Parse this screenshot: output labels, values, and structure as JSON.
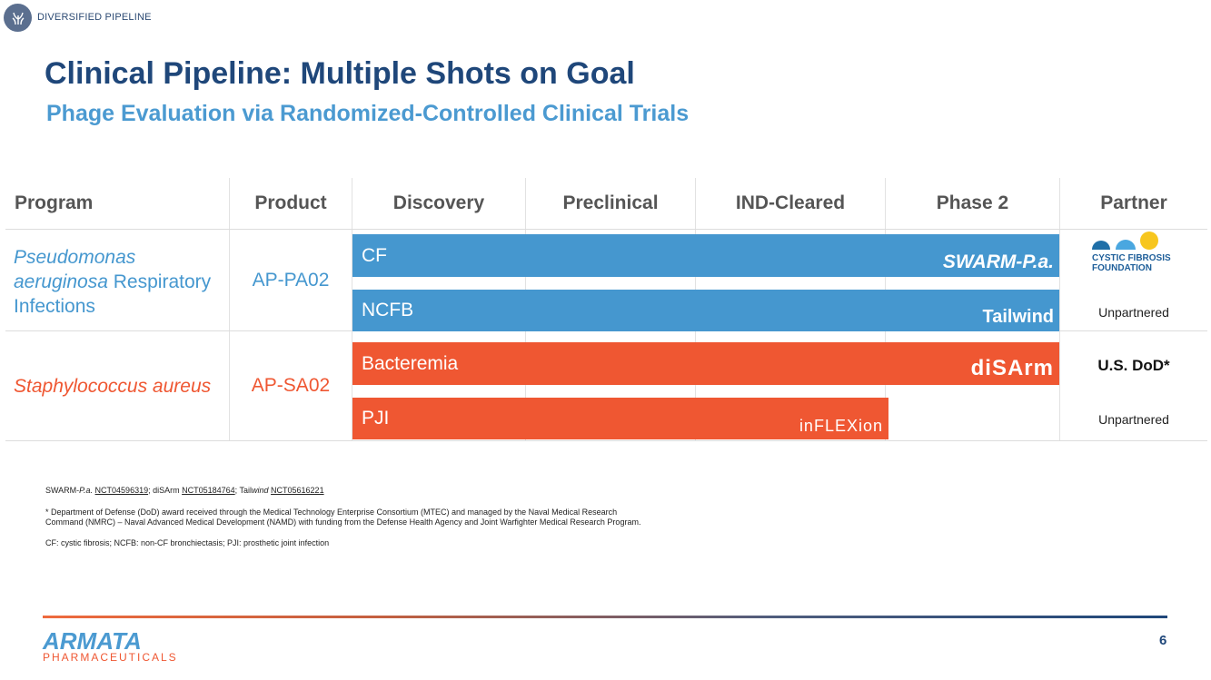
{
  "section_tag": {
    "label": "DIVERSIFIED PIPELINE",
    "icon": "plant-icon"
  },
  "title": "Clinical Pipeline: Multiple Shots on Goal",
  "subtitle": "Phage Evaluation via Randomized-Controlled Clinical Trials",
  "table": {
    "headers": [
      "Program",
      "Product",
      "Discovery",
      "Preclinical",
      "IND-Cleared",
      "Phase 2",
      "Partner"
    ],
    "rows": [
      {
        "program_italic": "Pseudomonas aeruginosa",
        "program_line1": "Pseudomonas",
        "program_line2_italic": "aeruginosa",
        "program_line2_rest": " Respiratory",
        "program_line3": "Infections",
        "program_color": "#4597cf",
        "product": "AP-PA02",
        "indications": [
          {
            "label": "CF",
            "trial_logo": "SWARM-P.a.",
            "stage": "Phase 2",
            "partner": "CYSTIC FIBROSIS FOUNDATION",
            "partner_lines": [
              "CYSTIC FIBROSIS",
              "FOUNDATION"
            ]
          },
          {
            "label": "NCFB",
            "trial_logo": "Tailwind",
            "stage": "Phase 2",
            "partner": "Unpartnered"
          }
        ]
      },
      {
        "program": "Staphylococcus aureus",
        "program_color": "#ef5732",
        "product": "AP-SA02",
        "indications": [
          {
            "label": "Bacteremia",
            "trial_logo": "diSArm",
            "stage": "Phase 2",
            "partner": "U.S. DoD*"
          },
          {
            "label": "PJI",
            "trial_logo": "inFLEXion",
            "stage": "Phase 2",
            "partner": "Unpartnered"
          }
        ]
      }
    ],
    "colors": {
      "blue": "#4597cf",
      "orange": "#ef5732"
    }
  },
  "footnotes": {
    "trials_a": "SWARM-",
    "trials_a_italic": "P.a.",
    "trials_nct1": "NCT04596319",
    "trials_b": "; diSArm ",
    "trials_nct2": "NCT05184764",
    "trials_c": "; Tail",
    "trials_c_italic": "wind",
    "trials_nct3": "NCT05616221",
    "dod_line1": "* Department of Defense (DoD) award received through the Medical Technology Enterprise Consortium (MTEC) and managed by the Naval Medical Research",
    "dod_line2": "Command (NMRC) – Naval Advanced Medical Development (NAMD) with funding from the Defense Health Agency and Joint Warfighter Medical Research Program.",
    "abbrev": "CF: cystic fibrosis; NCFB: non-CF bronchiectasis; PJI: prosthetic joint infection"
  },
  "footer": {
    "logo_main": "ARMATA",
    "logo_sub": "PHARMACEUTICALS",
    "page_number": "6"
  }
}
